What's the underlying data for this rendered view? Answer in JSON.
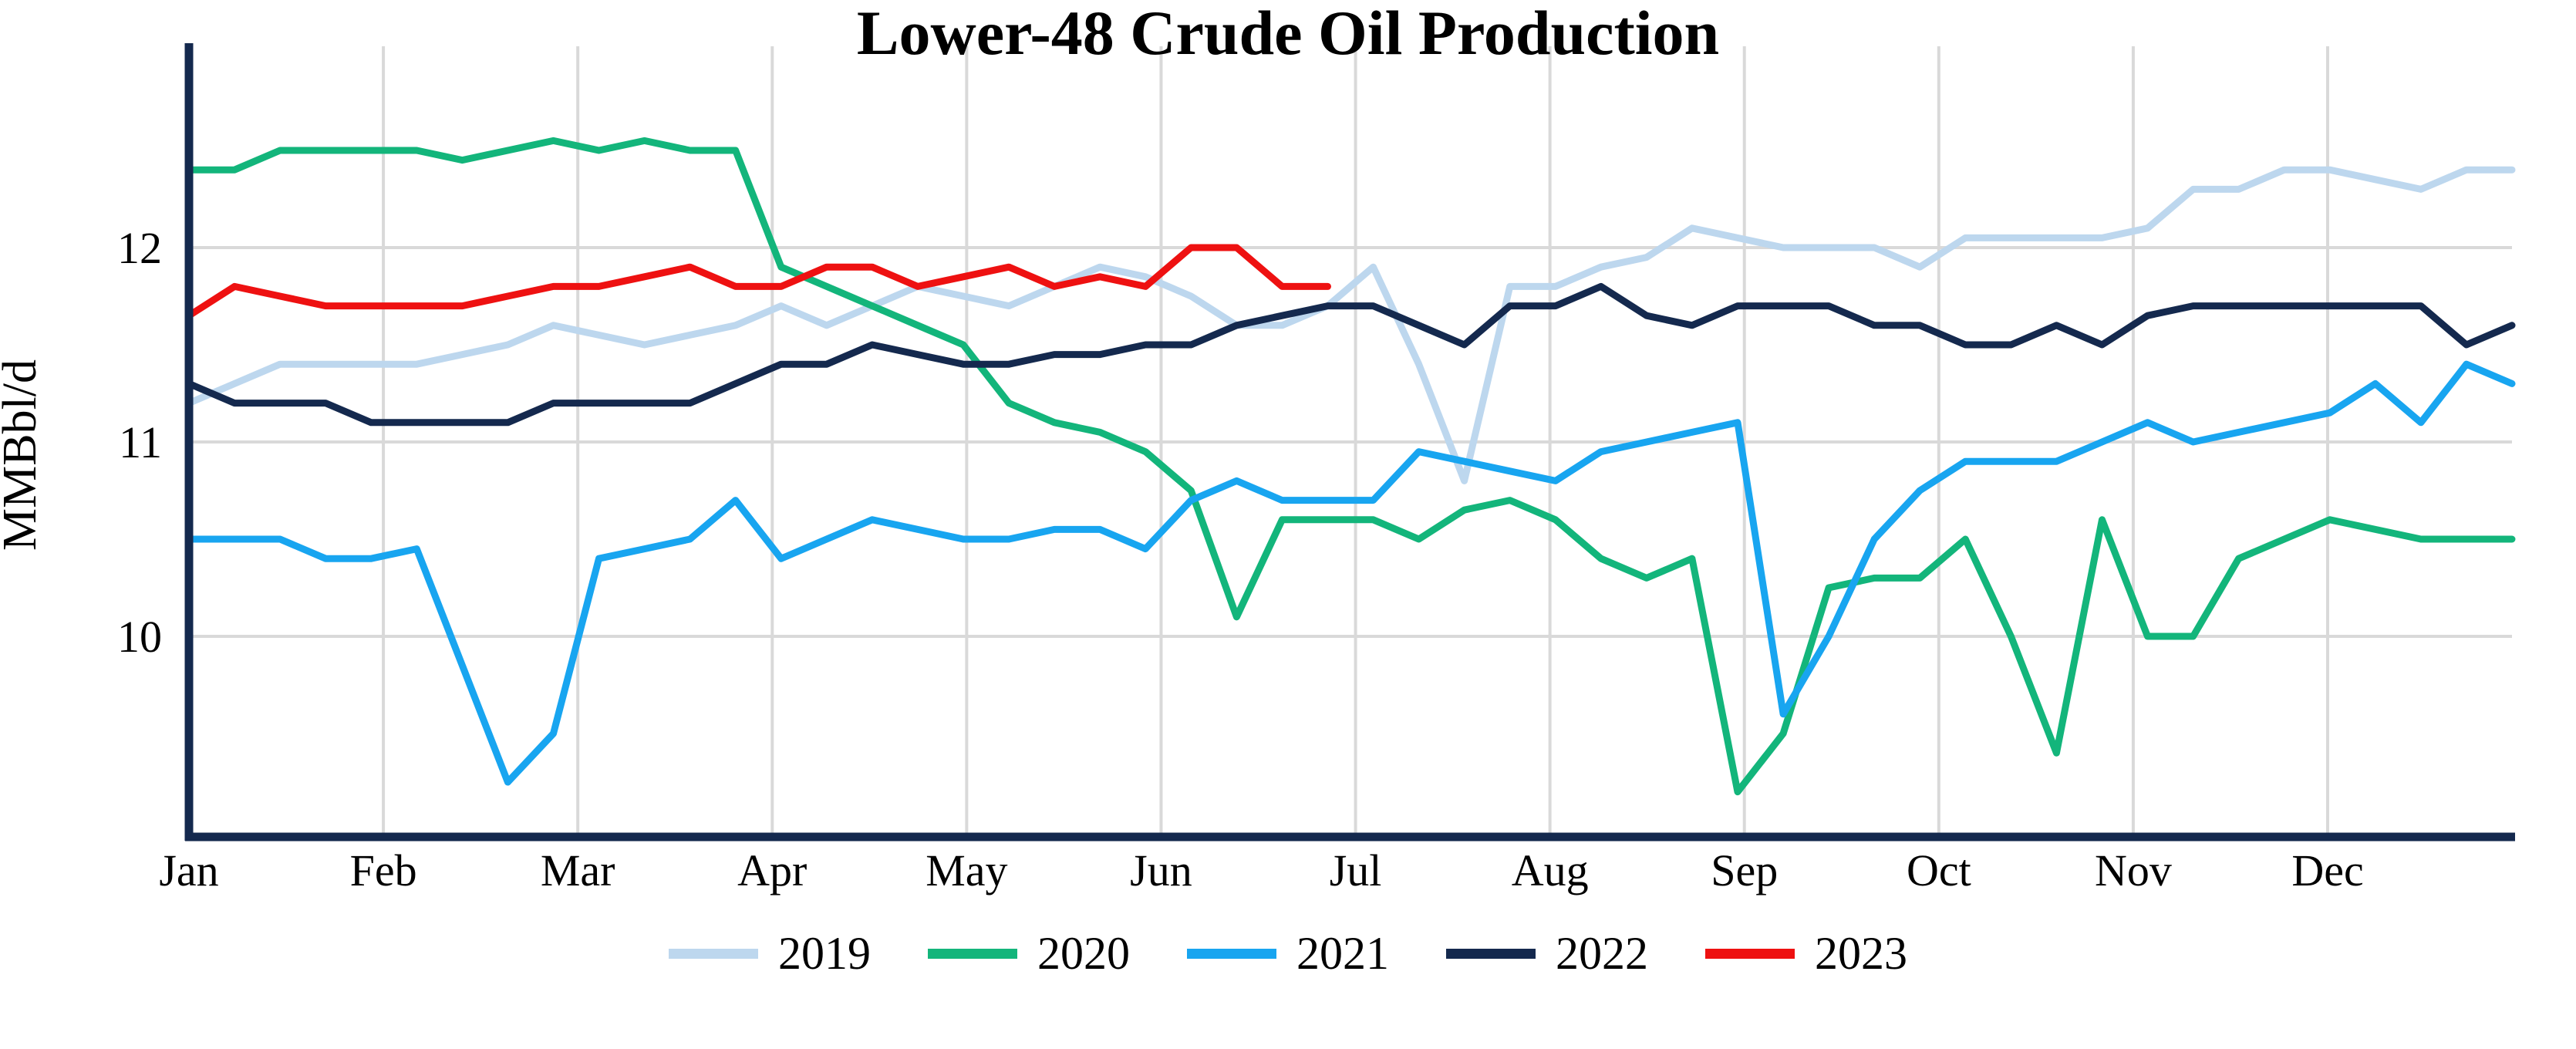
{
  "chart_data": {
    "type": "line",
    "title": "Lower-48 Crude Oil Production",
    "ylabel": "MMBbl/d",
    "x_unit": "week of year (weekly data, Jan through Dec)",
    "x_axis": {
      "months": [
        "Jan",
        "Feb",
        "Mar",
        "Apr",
        "May",
        "Jun",
        "Jul",
        "Aug",
        "Sep",
        "Oct",
        "Nov",
        "Dec"
      ]
    },
    "y_axis": {
      "ticks": [
        12,
        11,
        10
      ],
      "range": [
        9,
        13
      ]
    },
    "grid": true,
    "legend_position": "bottom",
    "grid_color": "#D9D9D9",
    "axis_color": "#14294E",
    "series": [
      {
        "name": "2019",
        "color": "#BDD7EE",
        "values": [
          11.2,
          11.3,
          11.4,
          11.4,
          11.4,
          11.4,
          11.45,
          11.5,
          11.6,
          11.55,
          11.5,
          11.55,
          11.6,
          11.7,
          11.6,
          11.7,
          11.8,
          11.75,
          11.7,
          11.8,
          11.9,
          11.85,
          11.75,
          11.6,
          11.6,
          11.7,
          11.9,
          11.4,
          10.8,
          11.8,
          11.8,
          11.9,
          11.95,
          12.1,
          12.05,
          12.0,
          12.0,
          12.0,
          11.9,
          12.05,
          12.05,
          12.05,
          12.05,
          12.1,
          12.3,
          12.3,
          12.4,
          12.4,
          12.35,
          12.3,
          12.4,
          12.4
        ]
      },
      {
        "name": "2020",
        "color": "#13B57B",
        "values": [
          12.4,
          12.4,
          12.5,
          12.5,
          12.5,
          12.5,
          12.45,
          12.5,
          12.55,
          12.5,
          12.55,
          12.5,
          12.5,
          11.9,
          11.8,
          11.7,
          11.6,
          11.5,
          11.2,
          11.1,
          11.05,
          10.95,
          10.75,
          10.1,
          10.6,
          10.6,
          10.6,
          10.5,
          10.65,
          10.7,
          10.6,
          10.4,
          10.3,
          10.4,
          9.2,
          9.5,
          10.25,
          10.3,
          10.3,
          10.5,
          10.0,
          9.4,
          10.6,
          10.0,
          10.0,
          10.4,
          10.5,
          10.6,
          10.55,
          10.5,
          10.5,
          10.5
        ]
      },
      {
        "name": "2021",
        "color": "#18A5F0",
        "values": [
          10.5,
          10.5,
          10.5,
          10.4,
          10.4,
          10.45,
          9.85,
          9.25,
          9.5,
          10.4,
          10.45,
          10.5,
          10.7,
          10.4,
          10.5,
          10.6,
          10.55,
          10.5,
          10.5,
          10.55,
          10.55,
          10.45,
          10.7,
          10.8,
          10.7,
          10.7,
          10.7,
          10.95,
          10.9,
          10.85,
          10.8,
          10.95,
          11.0,
          11.05,
          11.1,
          9.6,
          10.0,
          10.5,
          10.75,
          10.9,
          10.9,
          10.9,
          11.0,
          11.1,
          11.0,
          11.05,
          11.1,
          11.15,
          11.3,
          11.1,
          11.4,
          11.3
        ]
      },
      {
        "name": "2022",
        "color": "#14294E",
        "values": [
          11.3,
          11.2,
          11.2,
          11.2,
          11.1,
          11.1,
          11.1,
          11.1,
          11.2,
          11.2,
          11.2,
          11.2,
          11.3,
          11.4,
          11.4,
          11.5,
          11.45,
          11.4,
          11.4,
          11.45,
          11.45,
          11.5,
          11.5,
          11.6,
          11.65,
          11.7,
          11.7,
          11.6,
          11.5,
          11.7,
          11.7,
          11.8,
          11.65,
          11.6,
          11.7,
          11.7,
          11.7,
          11.6,
          11.6,
          11.5,
          11.5,
          11.6,
          11.5,
          11.65,
          11.7,
          11.7,
          11.7,
          11.7,
          11.7,
          11.7,
          11.5,
          11.6
        ]
      },
      {
        "name": "2023",
        "color": "#EE1111",
        "values": [
          11.65,
          11.8,
          11.75,
          11.7,
          11.7,
          11.7,
          11.7,
          11.75,
          11.8,
          11.8,
          11.85,
          11.9,
          11.8,
          11.8,
          11.9,
          11.9,
          11.8,
          11.85,
          11.9,
          11.8,
          11.85,
          11.8,
          12.0,
          12.0,
          11.8,
          11.8
        ]
      }
    ]
  }
}
